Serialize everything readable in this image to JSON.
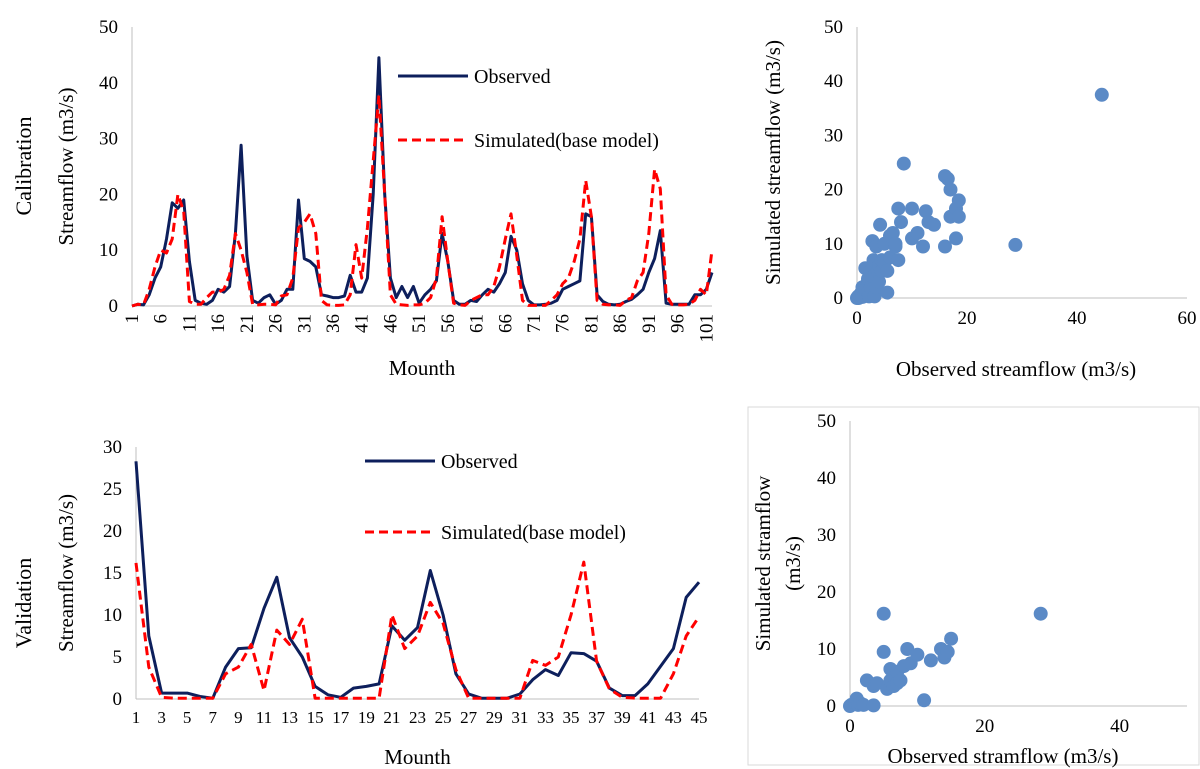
{
  "row_labels": {
    "top": "Calibration",
    "bottom": "Validation"
  },
  "colors": {
    "observed": "#0d1f5c",
    "simulated": "#ff0000",
    "scatter": "#5b8ac6",
    "axis": "#bfbfbf",
    "frame": "#d9d9d9"
  },
  "chart_data": [
    {
      "type": "line",
      "xlabel": "Mounth",
      "ylabel": "Streamflow (m3/s)",
      "ylim": [
        0,
        50
      ],
      "yticks": [
        0,
        10,
        20,
        30,
        40,
        50
      ],
      "x_tick_labels": [
        "1",
        "6",
        "11",
        "16",
        "21",
        "26",
        "31",
        "36",
        "41",
        "46",
        "51",
        "56",
        "61",
        "66",
        "71",
        "76",
        "81",
        "86",
        "91",
        "96",
        "101"
      ],
      "x_tick_rotation": "vertical",
      "legend_placement": "top-right",
      "grid": false,
      "series": [
        {
          "name": "Observed",
          "style": "solid",
          "values": [
            0,
            0.3,
            0.2,
            2,
            5,
            7,
            12,
            18.5,
            17.5,
            19,
            8,
            1,
            0.5,
            0.3,
            1,
            3,
            2.5,
            3.5,
            13,
            28.8,
            9,
            1,
            0.5,
            1.5,
            2,
            0.3,
            1,
            3,
            3,
            19,
            8.5,
            8,
            7,
            2,
            1.8,
            1.5,
            1.5,
            1.8,
            5.5,
            2.5,
            2.5,
            5,
            20,
            44.5,
            20,
            5,
            1.5,
            3.5,
            1.5,
            3.5,
            0.5,
            2,
            3,
            4.5,
            13,
            8,
            1,
            0.3,
            0.3,
            1,
            0.8,
            2,
            3,
            2.5,
            4,
            6,
            12.5,
            10,
            4,
            1,
            0.2,
            0.2,
            0.3,
            0.5,
            1,
            3,
            3.5,
            4,
            4.5,
            16.5,
            16,
            2,
            0.8,
            0.3,
            0.2,
            0.3,
            0.8,
            1.2,
            2,
            3,
            6,
            8.5,
            13.5,
            0.5,
            0.3,
            0.3,
            0.3,
            0.3,
            2,
            2,
            3,
            6
          ]
        },
        {
          "name": "Simulated(base model)",
          "style": "dashed",
          "values": [
            0,
            0.3,
            0.2,
            3,
            7,
            10,
            9.5,
            12,
            20,
            17,
            0.8,
            0.3,
            0.3,
            1.5,
            2.5,
            2.5,
            3,
            5.5,
            13,
            10,
            6,
            0.3,
            0.2,
            0.3,
            0.3,
            0.2,
            1.8,
            2,
            5,
            14,
            15,
            16.5,
            13,
            1,
            0.2,
            0.1,
            0.1,
            0.2,
            2,
            11,
            5,
            14,
            26,
            37.8,
            20,
            2,
            0.3,
            0.2,
            0.1,
            0.2,
            0.2,
            0.5,
            1.5,
            5,
            16,
            8,
            0.5,
            0.2,
            0.1,
            1,
            1.5,
            2,
            2,
            3.5,
            7,
            12,
            16.5,
            9,
            1,
            0.1,
            0.1,
            0.1,
            0.1,
            1,
            2,
            4,
            5,
            8,
            12,
            22.5,
            16,
            1,
            0.3,
            0.2,
            0.2,
            0.1,
            1,
            1.5,
            4.5,
            6,
            13,
            24.5,
            21,
            2,
            0.3,
            0.2,
            0.2,
            0.3,
            1,
            3,
            2,
            10
          ]
        }
      ]
    },
    {
      "type": "scatter",
      "xlabel": "Observed streamflow (m3/s)",
      "ylabel": "Simulated streamflow (m3/s)",
      "xlim": [
        0,
        60
      ],
      "ylim": [
        0,
        50
      ],
      "xticks": [
        0,
        20,
        40,
        60
      ],
      "yticks": [
        0,
        10,
        20,
        30,
        40,
        50
      ],
      "grid": false,
      "points": [
        [
          0,
          0
        ],
        [
          0.2,
          0.3
        ],
        [
          0.3,
          0
        ],
        [
          0.5,
          0.5
        ],
        [
          0.8,
          1
        ],
        [
          1,
          2
        ],
        [
          1,
          0.2
        ],
        [
          1.5,
          1.5
        ],
        [
          1.5,
          5.5
        ],
        [
          2,
          1
        ],
        [
          2,
          3
        ],
        [
          2,
          3.5
        ],
        [
          2.2,
          0.3
        ],
        [
          2.5,
          5
        ],
        [
          2.5,
          2
        ],
        [
          2.8,
          10.5
        ],
        [
          3,
          1.8
        ],
        [
          3,
          4
        ],
        [
          3,
          7
        ],
        [
          3.2,
          0.3
        ],
        [
          3.5,
          2
        ],
        [
          3.5,
          9.5
        ],
        [
          3.8,
          5
        ],
        [
          4,
          3
        ],
        [
          4,
          6
        ],
        [
          4.2,
          13.5
        ],
        [
          4.5,
          7
        ],
        [
          4.5,
          5
        ],
        [
          5,
          10
        ],
        [
          5,
          6.5
        ],
        [
          5.5,
          1
        ],
        [
          5.5,
          5
        ],
        [
          6,
          11.5
        ],
        [
          6,
          7.5
        ],
        [
          6.5,
          12
        ],
        [
          7,
          9.5
        ],
        [
          7,
          10
        ],
        [
          7.5,
          7
        ],
        [
          7.5,
          16.5
        ],
        [
          8,
          14
        ],
        [
          8.5,
          24.8
        ],
        [
          10,
          11
        ],
        [
          10,
          16.5
        ],
        [
          11,
          12
        ],
        [
          12,
          9.5
        ],
        [
          12.5,
          16
        ],
        [
          13,
          14
        ],
        [
          14,
          13.5
        ],
        [
          16,
          9.5
        ],
        [
          16,
          22.5
        ],
        [
          16.5,
          22
        ],
        [
          17,
          15
        ],
        [
          17,
          20
        ],
        [
          18,
          11
        ],
        [
          18,
          16.5
        ],
        [
          18.5,
          18
        ],
        [
          18.5,
          15
        ],
        [
          28.8,
          9.8
        ],
        [
          44.5,
          37.5
        ]
      ]
    },
    {
      "type": "line",
      "xlabel": "Mounth",
      "ylabel": "Streamflow (m3/s)",
      "ylim": [
        0,
        30
      ],
      "yticks": [
        0,
        5,
        10,
        15,
        20,
        25,
        30
      ],
      "x_tick_labels": [
        "1",
        "3",
        "5",
        "7",
        "9",
        "11",
        "13",
        "15",
        "17",
        "19",
        "21",
        "23",
        "25",
        "27",
        "29",
        "31",
        "33",
        "35",
        "37",
        "39",
        "41",
        "43",
        "45"
      ],
      "legend_placement": "top-right",
      "grid": false,
      "series": [
        {
          "name": "Observed",
          "style": "solid",
          "values": [
            28.3,
            7.5,
            0.7,
            0.7,
            0.7,
            0.3,
            0.1,
            3.8,
            6,
            6.1,
            10.8,
            14.5,
            7.3,
            5,
            1.5,
            0.5,
            0.2,
            1.3,
            1.5,
            1.8,
            8.7,
            7,
            8.5,
            15.3,
            10,
            3,
            0.6,
            0.1,
            0.1,
            0.1,
            0.6,
            2.3,
            3.5,
            2.8,
            5.5,
            5.4,
            4.5,
            1.3,
            0.4,
            0.4,
            1.8,
            3.9,
            6,
            12.1,
            13.9
          ]
        },
        {
          "name": "Simulated(base model)",
          "style": "dashed",
          "values": [
            16.2,
            3.8,
            0.2,
            0.1,
            0.1,
            0.1,
            0.1,
            3,
            3.8,
            6.5,
            1,
            8.2,
            6.5,
            9.5,
            0.1,
            0.1,
            0.1,
            0.1,
            0.1,
            0.1,
            10,
            6,
            7.5,
            11.5,
            9,
            3.5,
            0.1,
            0.1,
            0.1,
            0.1,
            0.1,
            4.6,
            4,
            5,
            10,
            16.3,
            4.5,
            1.2,
            0.2,
            0.1,
            0.1,
            0.1,
            3,
            7.5,
            9.8
          ]
        }
      ]
    },
    {
      "type": "scatter",
      "xlabel": "Observed stramflow (m3/s)",
      "ylabel": "Simulated stramflow (m3/s)",
      "xlim": [
        0,
        50
      ],
      "ylim": [
        0,
        50
      ],
      "xticks": [
        0,
        20,
        40
      ],
      "yticks": [
        0,
        10,
        20,
        30,
        40,
        50
      ],
      "grid": false,
      "points": [
        [
          0,
          0
        ],
        [
          0.2,
          0.2
        ],
        [
          0.5,
          0.3
        ],
        [
          0.8,
          0.5
        ],
        [
          1,
          1.3
        ],
        [
          1.2,
          0.2
        ],
        [
          1.5,
          0.5
        ],
        [
          2,
          0.2
        ],
        [
          2.5,
          4.5
        ],
        [
          3.5,
          3.5
        ],
        [
          3.5,
          0.1
        ],
        [
          4,
          4
        ],
        [
          5,
          9.5
        ],
        [
          5,
          16.2
        ],
        [
          5.5,
          3
        ],
        [
          6,
          4.5
        ],
        [
          6,
          6.5
        ],
        [
          6.5,
          3.5
        ],
        [
          7,
          4
        ],
        [
          7,
          6
        ],
        [
          7.5,
          4.5
        ],
        [
          8,
          7
        ],
        [
          8.5,
          10
        ],
        [
          9,
          7.5
        ],
        [
          10,
          9
        ],
        [
          11,
          1
        ],
        [
          12,
          8
        ],
        [
          13.5,
          10
        ],
        [
          14,
          8.5
        ],
        [
          14.5,
          9.5
        ],
        [
          15,
          11.8
        ],
        [
          28.3,
          16.2
        ]
      ]
    }
  ]
}
